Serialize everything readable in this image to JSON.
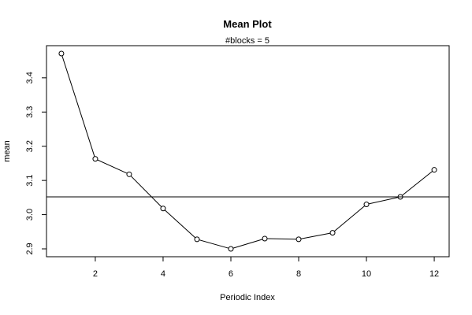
{
  "chart_data": {
    "type": "line",
    "title": "Mean Plot",
    "subtitle": "#blocks =  5",
    "xlabel": "Periodic Index",
    "ylabel": "mean",
    "x": [
      1,
      2,
      3,
      4,
      5,
      6,
      7,
      8,
      9,
      10,
      11,
      12
    ],
    "y": [
      3.471,
      3.163,
      3.118,
      3.018,
      2.928,
      2.9,
      2.93,
      2.928,
      2.947,
      3.03,
      3.052,
      3.131
    ],
    "reference_line": 3.052,
    "xlim": [
      0.56,
      12.44
    ],
    "ylim": [
      2.877,
      3.494
    ],
    "x_ticks": [
      2,
      4,
      6,
      8,
      10,
      12
    ],
    "y_ticks": [
      2.9,
      3.0,
      3.1,
      3.2,
      3.3,
      3.4
    ],
    "x_tick_labels": [
      "2",
      "4",
      "6",
      "8",
      "10",
      "12"
    ],
    "y_tick_labels": [
      "2.9",
      "3.0",
      "3.1",
      "3.2",
      "3.3",
      "3.4"
    ],
    "grid": false,
    "marker": "open-circle",
    "line_color": "#000000"
  }
}
